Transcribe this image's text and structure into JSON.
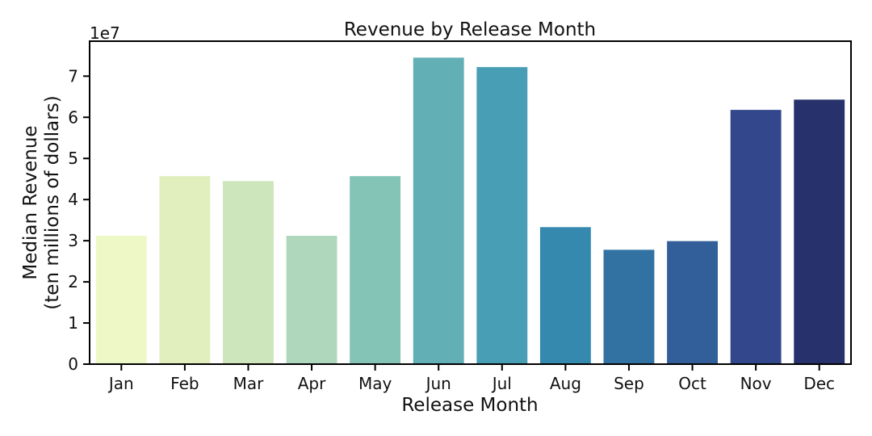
{
  "chart_data": {
    "type": "bar",
    "title": "Revenue by Release Month",
    "xlabel": "Release Month",
    "ylabel_lines": [
      "Median Revenue",
      "(ten millions of dollars)"
    ],
    "y_offset_label": "1e7",
    "categories": [
      "Jan",
      "Feb",
      "Mar",
      "Apr",
      "May",
      "Jun",
      "Jul",
      "Aug",
      "Sep",
      "Oct",
      "Nov",
      "Dec"
    ],
    "values": [
      31200000,
      45700000,
      44500000,
      31200000,
      45700000,
      74500000,
      72200000,
      33300000,
      27800000,
      29900000,
      61800000,
      64300000
    ],
    "ylim": [
      0,
      78500000
    ],
    "yticks": [
      0,
      10000000,
      20000000,
      30000000,
      40000000,
      50000000,
      60000000,
      70000000
    ],
    "ytick_labels": [
      "0",
      "1",
      "2",
      "3",
      "4",
      "5",
      "6",
      "7"
    ],
    "colors": [
      "#edf8c6",
      "#e0efbd",
      "#cde6bb",
      "#aed7bb",
      "#84c4b6",
      "#62b0b5",
      "#489fb5",
      "#3588ae",
      "#3172a2",
      "#325e99",
      "#33478d",
      "#27326d"
    ],
    "grid": false,
    "legend": "none"
  }
}
